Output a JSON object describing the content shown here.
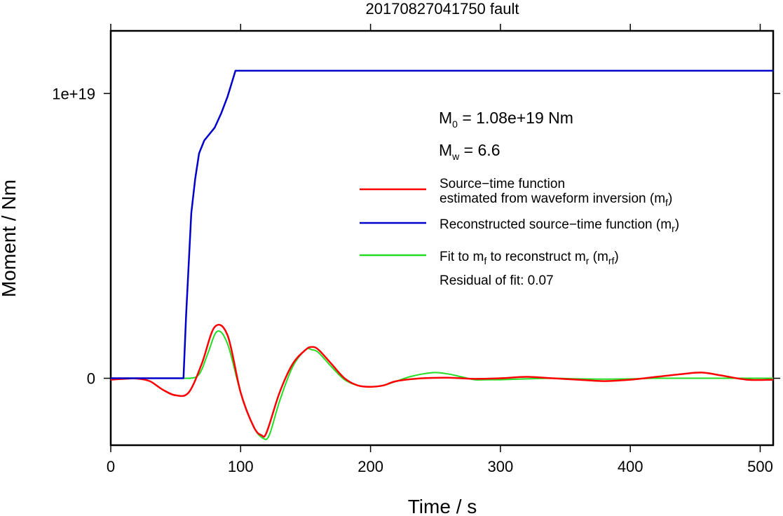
{
  "chart_data": {
    "type": "line",
    "title": "20170827041750 fault",
    "xlabel": "Time / s",
    "ylabel": "Moment / Nm",
    "xlim": [
      0,
      510
    ],
    "ylim": [
      -2.35e+18,
      1.22e+19
    ],
    "xticks": [
      0,
      100,
      200,
      300,
      400,
      500
    ],
    "xtick_labels": [
      "0",
      "100",
      "200",
      "300",
      "400",
      "500"
    ],
    "yticks": [
      0,
      1e+19
    ],
    "ytick_labels": [
      "0",
      "1e+19"
    ],
    "annotations": {
      "m0": {
        "base": "M",
        "sub": "0",
        "text": " = 1.08e+19 Nm"
      },
      "mw": {
        "base": "M",
        "sub": "w",
        "text": " = 6.6"
      },
      "residual": "Residual of fit: 0.07"
    },
    "legend": {
      "position": "right",
      "entries": [
        {
          "series": "mf",
          "color": "#ff0000",
          "line1": "Source−time function",
          "line2_pre": "estimated from waveform inversion (m",
          "line2_sub": "f",
          "line2_post": ")"
        },
        {
          "series": "mr",
          "color": "#0000cc",
          "line1_pre": "Reconstructed source−time function (m",
          "line1_sub": "r",
          "line1_post": ")"
        },
        {
          "series": "mrf",
          "color": "#22dd22",
          "pre": "Fit to m",
          "sub1": "f",
          "mid": " to reconstruct m",
          "sub2": "r",
          "mid2": " (m",
          "sub3": "rf",
          "post": ")"
        }
      ]
    },
    "series": [
      {
        "key": "mr",
        "color": "#0000cc",
        "x": [
          0,
          56,
          58,
          60,
          62,
          65,
          68,
          72,
          80,
          85,
          90,
          96,
          510
        ],
        "y": [
          0,
          0,
          2.2e+18,
          4e+18,
          5.8e+18,
          7e+18,
          7.9e+18,
          8.35e+18,
          8.8e+18,
          9.3e+18,
          9.9e+18,
          1.08e+19,
          1.08e+19
        ]
      },
      {
        "key": "mf",
        "color": "#ff0000",
        "x": [
          0,
          10,
          20,
          30,
          40,
          50,
          60,
          70,
          80,
          90,
          100,
          110,
          116,
          120,
          130,
          140,
          150,
          155,
          160,
          170,
          180,
          190,
          200,
          210,
          220,
          240,
          260,
          280,
          300,
          320,
          340,
          360,
          380,
          400,
          420,
          440,
          455,
          470,
          490,
          510
        ],
        "y": [
          -5e+16,
          -2e+16,
          -1e+16,
          -1e+17,
          -4e+17,
          -6e+17,
          -5e+17,
          5e+17,
          1.8e+18,
          1.5e+18,
          -5e+17,
          -1.7e+18,
          -2e+18,
          -1.9e+18,
          -5e+17,
          5e+17,
          1e+18,
          1.1e+18,
          1e+18,
          5e+17,
          0,
          -2.5e+17,
          -3e+17,
          -2.5e+17,
          -1e+17,
          0,
          2e+16,
          -2e+16,
          0,
          5e+16,
          0,
          -5e+16,
          -1e+17,
          -5e+16,
          5e+16,
          1.5e+17,
          2e+17,
          1e+17,
          -5e+16,
          -5e+16
        ]
      },
      {
        "key": "mrf",
        "color": "#22dd22",
        "x": [
          0,
          56,
          60,
          66,
          70,
          75,
          82,
          90,
          100,
          110,
          117,
          122,
          130,
          140,
          150,
          155,
          160,
          170,
          180,
          190,
          200,
          210,
          220,
          230,
          240,
          250,
          260,
          270,
          280,
          290,
          300,
          320,
          340,
          360,
          380,
          400,
          420,
          440,
          460,
          480,
          500,
          510
        ],
        "y": [
          0,
          0,
          0,
          5e+16,
          3e+17,
          9e+17,
          1.65e+18,
          1.2e+18,
          -5e+17,
          -1.7e+18,
          -2.1e+18,
          -2e+18,
          -8e+17,
          4e+17,
          1e+18,
          1e+18,
          9e+17,
          4e+17,
          -5e+16,
          -2.5e+17,
          -3e+17,
          -2.5e+17,
          -1e+17,
          5e+16,
          1.5e+17,
          2e+17,
          1.5e+17,
          5e+16,
          -5e+16,
          -5e+16,
          -5e+16,
          -2e+16,
          0,
          -2e+16,
          -3e+16,
          -2e+16,
          0,
          0,
          0,
          0,
          0,
          0
        ]
      }
    ]
  }
}
